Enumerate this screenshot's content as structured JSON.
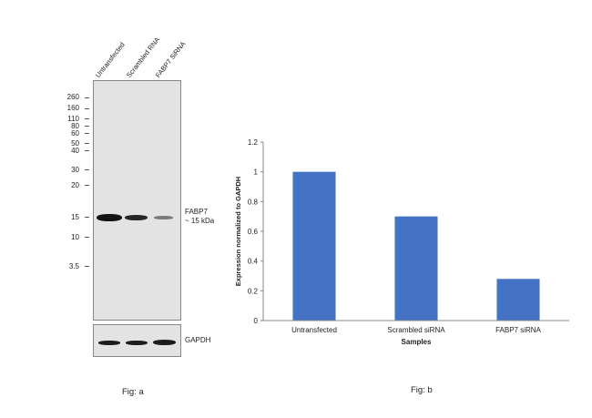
{
  "figure_a": {
    "lanes": [
      "Untransfected",
      "Scrambled RNA",
      "FABP7 SiRNA"
    ],
    "mw_markers": [
      "260",
      "160",
      "110",
      "80",
      "60",
      "50",
      "40",
      "30",
      "20",
      "15",
      "10",
      "3.5"
    ],
    "target_label": "FABP7",
    "target_size": "~ 15 kDa",
    "loading_control": "GAPDH",
    "caption": "Fig: a"
  },
  "chart_data": {
    "type": "bar",
    "categories": [
      "Untransfected",
      "Scrambled siRNA",
      "FABP7 siRNA"
    ],
    "values": [
      1.0,
      0.7,
      0.28
    ],
    "title": "",
    "xlabel": "Samples",
    "ylabel": "Expression normalized to GAPDH",
    "ylim": [
      0,
      1.2
    ],
    "yticks": [
      "0",
      "0.2",
      "0.4",
      "0.6",
      "0.8",
      "1",
      "1.2"
    ],
    "grid": false,
    "bar_color": "#4472c4"
  },
  "figure_b": {
    "caption": "Fig: b"
  }
}
